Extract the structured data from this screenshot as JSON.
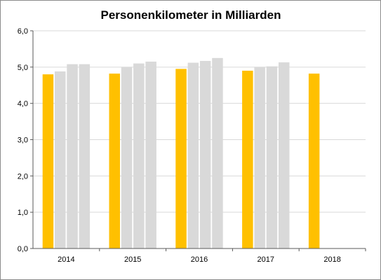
{
  "chart_data": {
    "type": "bar",
    "title": "Personenkilometer in Milliarden",
    "xlabel": "",
    "ylabel": "",
    "categories": [
      "2014",
      "2015",
      "2016",
      "2017",
      "2018"
    ],
    "ylim": [
      0,
      6
    ],
    "y_ticks": [
      "0,0",
      "1,0",
      "2,0",
      "3,0",
      "4,0",
      "5,0",
      "6,0"
    ],
    "grid": true,
    "legend": "none",
    "series": [
      {
        "values": [
          4.8,
          4.82,
          4.95,
          4.9,
          4.82
        ],
        "color": "#FFC000"
      },
      {
        "values": [
          4.88,
          5.0,
          5.12,
          5.0,
          null
        ],
        "color": "#D9D9D9"
      },
      {
        "values": [
          5.08,
          5.1,
          5.17,
          5.02,
          null
        ],
        "color": "#D9D9D9"
      },
      {
        "values": [
          5.08,
          5.15,
          5.25,
          5.13,
          null
        ],
        "color": "#D9D9D9"
      }
    ]
  }
}
